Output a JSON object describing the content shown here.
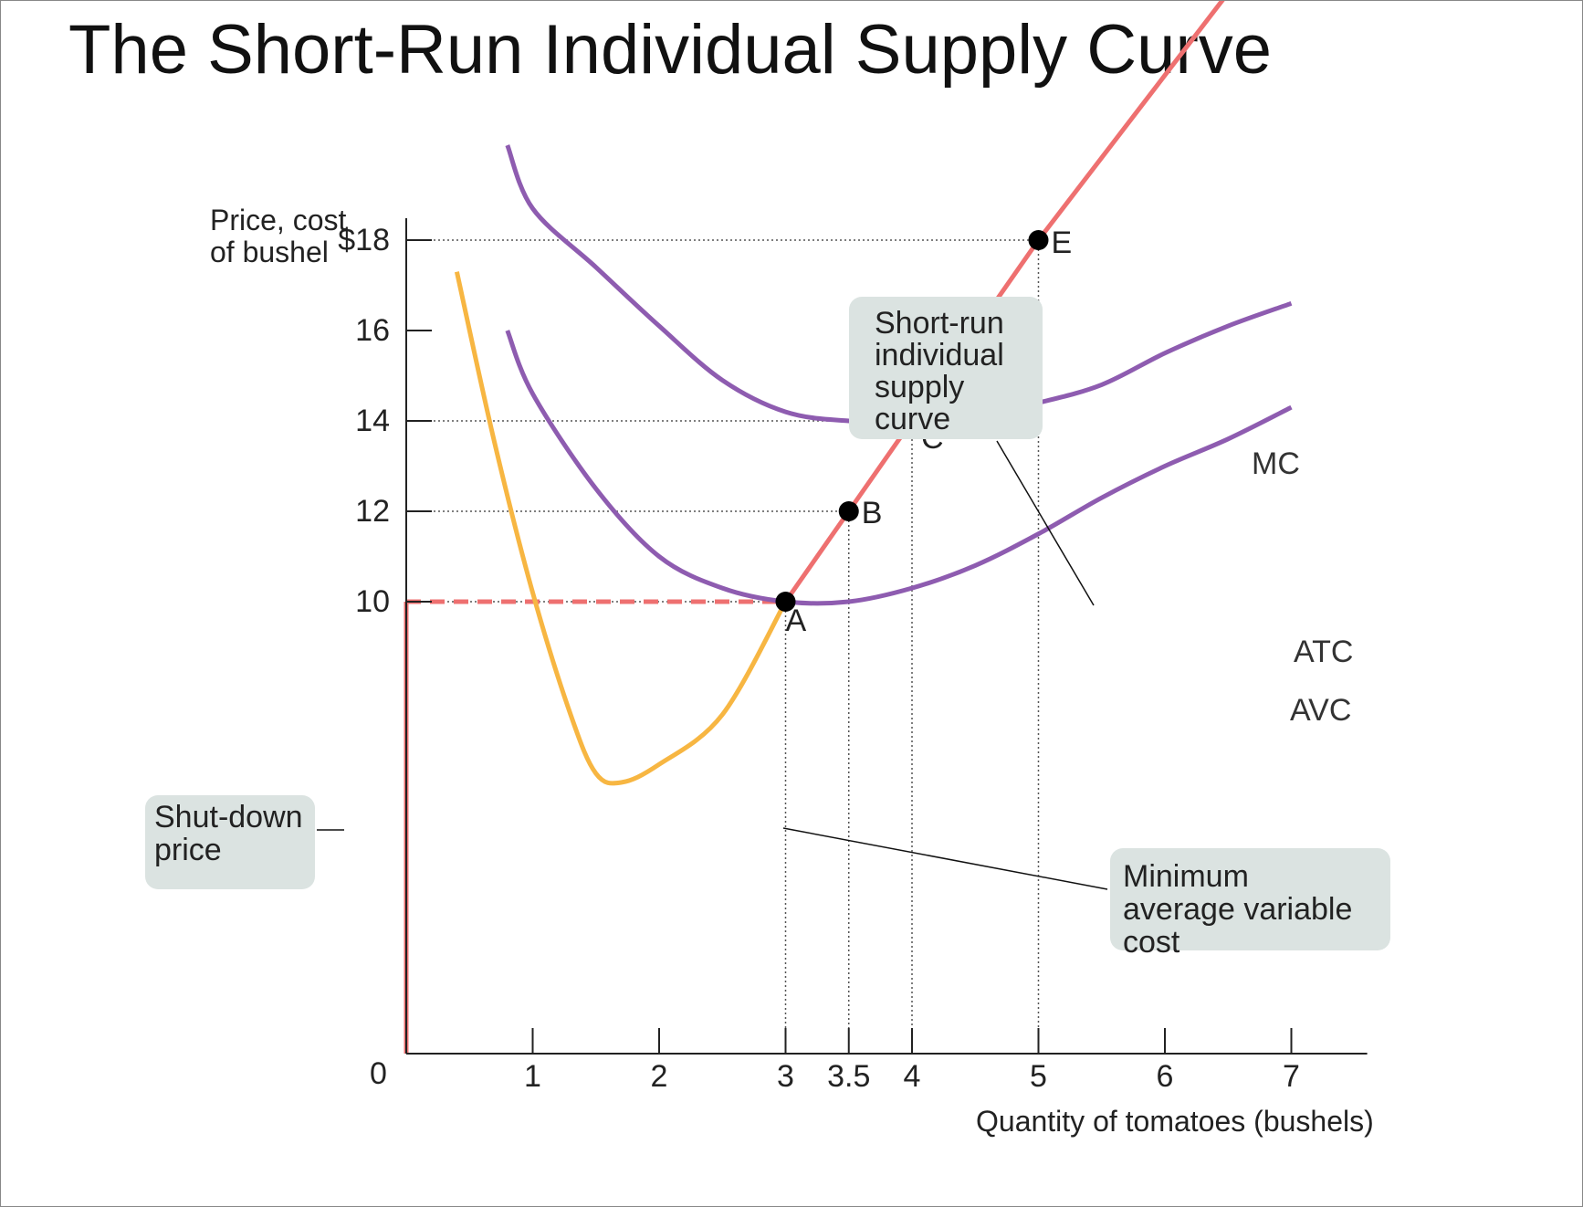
{
  "title": "The Short-Run Individual Supply Curve",
  "colors": {
    "mc": "#ee7070",
    "atc": "#8e5cb0",
    "avc": "#8e5cb0",
    "mc_lower": "#f7b642",
    "supply": "#ee7070",
    "callout_bg": "#dbe3e1",
    "axis": "#222222"
  },
  "chart_data": {
    "type": "line",
    "xlabel": "Quantity of tomatoes (bushels)",
    "ylabel": "Price, cost of bushel",
    "origin_label": "0",
    "xlim": [
      0,
      7.6
    ],
    "ylim": [
      0,
      28
    ],
    "x_ticks": [
      {
        "value": 1,
        "label": "1"
      },
      {
        "value": 2,
        "label": "2"
      },
      {
        "value": 3,
        "label": "3"
      },
      {
        "value": 3.5,
        "label": "3.5"
      },
      {
        "value": 4,
        "label": "4"
      },
      {
        "value": 5,
        "label": "5"
      },
      {
        "value": 6,
        "label": "6"
      },
      {
        "value": 7,
        "label": "7"
      }
    ],
    "y_ticks": [
      {
        "value": 18,
        "label": "$18"
      },
      {
        "value": 16,
        "label": "16"
      },
      {
        "value": 14,
        "label": "14"
      },
      {
        "value": 12,
        "label": "12"
      },
      {
        "value": 10,
        "label": "10"
      }
    ],
    "series": [
      {
        "name": "MC",
        "key": "mc",
        "points": [
          [
            3,
            10
          ],
          [
            3.5,
            12
          ],
          [
            4,
            14
          ],
          [
            5,
            18
          ],
          [
            6.7,
            24.2
          ]
        ]
      },
      {
        "name": "ATC",
        "key": "atc",
        "points": [
          [
            0.8,
            20.1
          ],
          [
            1.0,
            18.7
          ],
          [
            1.5,
            17.4
          ],
          [
            2.0,
            16.1
          ],
          [
            2.5,
            14.9
          ],
          [
            3.0,
            14.2
          ],
          [
            3.5,
            14.0
          ],
          [
            4.0,
            14.0
          ],
          [
            4.5,
            14.1
          ],
          [
            5.0,
            14.4
          ],
          [
            5.5,
            14.8
          ],
          [
            6.0,
            15.5
          ],
          [
            6.5,
            16.1
          ],
          [
            7.0,
            16.6
          ]
        ]
      },
      {
        "name": "AVC",
        "key": "avc",
        "points": [
          [
            0.8,
            16.0
          ],
          [
            1.0,
            14.6
          ],
          [
            1.5,
            12.5
          ],
          [
            2.0,
            11.0
          ],
          [
            2.5,
            10.3
          ],
          [
            3.0,
            10.0
          ],
          [
            3.5,
            10.0
          ],
          [
            4.0,
            10.3
          ],
          [
            4.5,
            10.8
          ],
          [
            5.0,
            11.5
          ],
          [
            5.5,
            12.3
          ],
          [
            6.0,
            13.0
          ],
          [
            6.5,
            13.6
          ],
          [
            7.0,
            14.3
          ]
        ]
      },
      {
        "name": "",
        "key": "mc_lower",
        "points": [
          [
            0.4,
            17.3
          ],
          [
            0.7,
            13.5
          ],
          [
            1.0,
            10.2
          ],
          [
            1.3,
            7.5
          ],
          [
            1.5,
            6.2
          ],
          [
            1.7,
            6.0
          ],
          [
            2.0,
            6.4
          ],
          [
            2.5,
            7.5
          ],
          [
            3.0,
            10.0
          ]
        ]
      }
    ],
    "points": [
      {
        "label": "A",
        "x": 3,
        "y": 10
      },
      {
        "label": "B",
        "x": 3.5,
        "y": 12
      },
      {
        "label": "C",
        "x": 4,
        "y": 14
      },
      {
        "label": "E",
        "x": 5,
        "y": 18
      }
    ],
    "shut_down_price": 10,
    "callouts": {
      "supply": [
        "Short-run",
        "individual",
        "supply",
        "curve"
      ],
      "shutdown": [
        "Shut-down",
        "price"
      ],
      "min_avc": [
        "Minimum",
        "average variable",
        "cost"
      ]
    }
  }
}
